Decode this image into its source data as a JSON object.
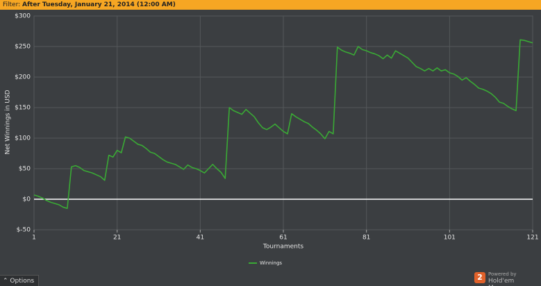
{
  "ui": {
    "filter_label": "Filter:",
    "filter_value": "After Tuesday, January 21, 2014 (12:00 AM)",
    "options": "Options",
    "powered_by": "Powered by",
    "brand": "Hold'em Manager",
    "logo": "2"
  },
  "chart_data": {
    "type": "line",
    "y_label": "Net Winnings in USD",
    "x_label": "Tournaments",
    "xlim": [
      1,
      121
    ],
    "xticks": [
      1,
      21,
      41,
      61,
      81,
      101,
      121
    ],
    "ylim": [
      -50,
      300
    ],
    "yticks": [
      {
        "value": -50,
        "label": "$-50"
      },
      {
        "value": 0,
        "label": "$0"
      },
      {
        "value": 50,
        "label": "$50"
      },
      {
        "value": 100,
        "label": "$100"
      },
      {
        "value": 150,
        "label": "$150"
      },
      {
        "value": 200,
        "label": "$200"
      },
      {
        "value": 250,
        "label": "$250"
      },
      {
        "value": 300,
        "label": "$300"
      }
    ],
    "grid": true,
    "legend": "bottom",
    "x": [
      1,
      2,
      3,
      4,
      5,
      6,
      7,
      8,
      9,
      10,
      11,
      12,
      13,
      14,
      15,
      16,
      17,
      18,
      19,
      20,
      21,
      22,
      23,
      24,
      25,
      26,
      27,
      28,
      29,
      30,
      31,
      32,
      33,
      34,
      35,
      36,
      37,
      38,
      39,
      40,
      41,
      42,
      43,
      44,
      45,
      46,
      47,
      48,
      49,
      50,
      51,
      52,
      53,
      54,
      55,
      56,
      57,
      58,
      59,
      60,
      61,
      62,
      63,
      64,
      65,
      66,
      67,
      68,
      69,
      70,
      71,
      72,
      73,
      74,
      75,
      76,
      77,
      78,
      79,
      80,
      81,
      82,
      83,
      84,
      85,
      86,
      87,
      88,
      89,
      90,
      91,
      92,
      93,
      94,
      95,
      96,
      97,
      98,
      99,
      100,
      101,
      102,
      103,
      104,
      105,
      106,
      107,
      108,
      109,
      110,
      111,
      112,
      113,
      114,
      115,
      116,
      117,
      118,
      119,
      120,
      121
    ],
    "series": [
      {
        "name": "Winnings",
        "color": "#3aaa35",
        "values": [
          7,
          5,
          2,
          -2,
          -5,
          -7,
          -9,
          -13,
          -15,
          53,
          55,
          52,
          47,
          45,
          43,
          40,
          37,
          31,
          72,
          69,
          80,
          76,
          102,
          100,
          95,
          90,
          88,
          83,
          77,
          75,
          70,
          65,
          61,
          59,
          57,
          53,
          49,
          56,
          52,
          50,
          47,
          43,
          50,
          57,
          50,
          44,
          34,
          150,
          145,
          142,
          139,
          147,
          141,
          135,
          125,
          117,
          114,
          118,
          123,
          117,
          111,
          107,
          140,
          135,
          131,
          127,
          124,
          118,
          113,
          107,
          99,
          111,
          107,
          249,
          244,
          241,
          239,
          236,
          250,
          245,
          243,
          240,
          238,
          235,
          230,
          236,
          231,
          243,
          239,
          235,
          231,
          224,
          217,
          214,
          210,
          214,
          210,
          215,
          210,
          212,
          207,
          205,
          201,
          195,
          199,
          193,
          188,
          182,
          180,
          177,
          173,
          167,
          159,
          157,
          152,
          148,
          145,
          261,
          260,
          258,
          256
        ]
      }
    ]
  }
}
